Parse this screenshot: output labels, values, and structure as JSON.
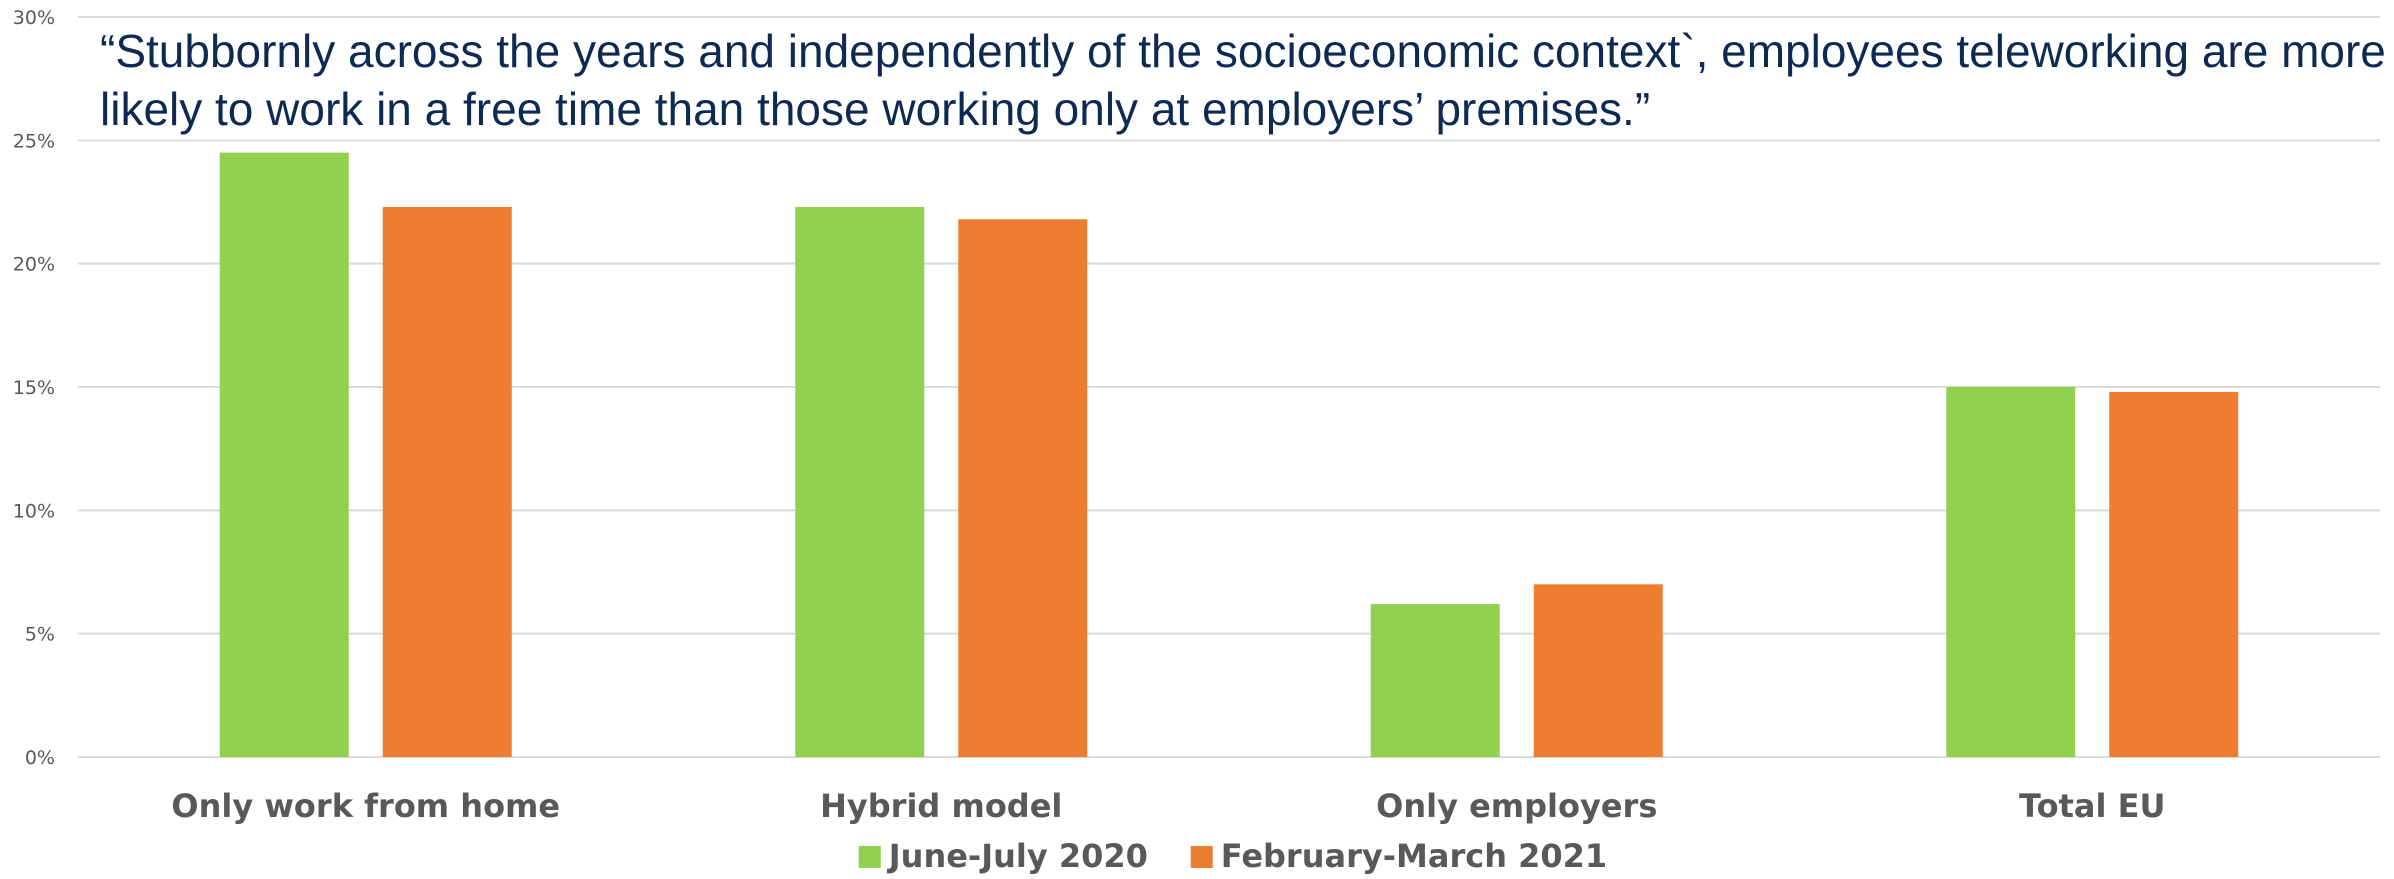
{
  "quote": "“Stubbornly across the years and independently of the socioeconomic context`, employees teleworking are more likely to work in a free time than those working only at employers’ premises.”",
  "chart_data": {
    "type": "bar",
    "title": "",
    "xlabel": "",
    "ylabel": "",
    "categories": [
      "Only work from home",
      "Hybrid model",
      "Only employers",
      "Total EU"
    ],
    "series": [
      {
        "name": "June-July 2020",
        "color": "#92d050",
        "values": [
          24.5,
          22.3,
          6.2,
          15.0
        ]
      },
      {
        "name": "February-March 2021",
        "color": "#ed7d31",
        "values": [
          22.3,
          21.8,
          7.0,
          14.8
        ]
      }
    ],
    "ylim": [
      0,
      30
    ],
    "yticks": [
      0,
      5,
      10,
      15,
      20,
      25,
      30
    ],
    "ytick_labels": [
      "0%",
      "5%",
      "10%",
      "15%",
      "20%",
      "25%",
      "30%"
    ],
    "grid": true,
    "legend_position": "bottom"
  }
}
